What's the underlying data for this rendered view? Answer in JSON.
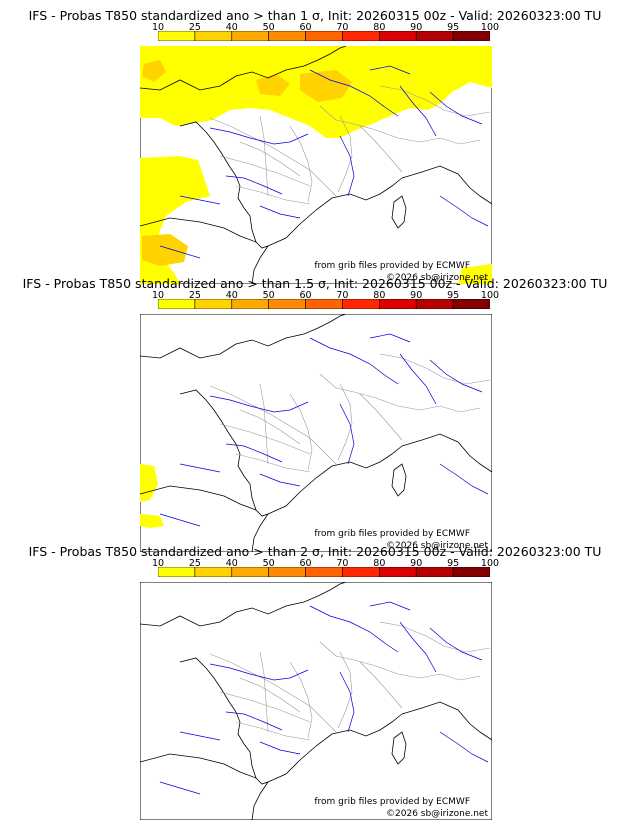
{
  "panels": [
    {
      "title": "IFS - Probas T850  standardized ano > than 1 σ, Init: 20260315 00z - Valid: 20260323:00 TU",
      "threshold": "1 σ",
      "credit_source": "from grib files provided by ECMWF",
      "credit_copyright": "©2026 sb@irizone.net"
    },
    {
      "title": "IFS - Probas T850  standardized ano > than 1.5 σ, Init: 20260315 00z - Valid: 20260323:00 TU",
      "threshold": "1.5 σ",
      "credit_source": "from grib files provided by ECMWF",
      "credit_copyright": "©2026 sb@irizone.net"
    },
    {
      "title": "IFS - Probas T850  standardized ano > than 2 σ, Init: 20260315 00z - Valid: 20260323:00 TU",
      "threshold": "2 σ",
      "credit_source": "from grib files provided by ECMWF",
      "credit_copyright": "©2026 sb@irizone.net"
    }
  ],
  "colorbar": {
    "ticks": [
      "10",
      "25",
      "40",
      "50",
      "60",
      "70",
      "80",
      "90",
      "95",
      "100"
    ],
    "colors": [
      "#ffff00",
      "#ffd200",
      "#ffaa00",
      "#ff8c00",
      "#ff6400",
      "#ff2800",
      "#dc0000",
      "#b40000",
      "#820000"
    ]
  },
  "map_colors": {
    "land": "#ffffff",
    "coast": "#000000",
    "rivers": "#0000dd",
    "borders": "#9a9a9a",
    "prob_low": "#ffff00",
    "prob_mid": "#ffd200"
  }
}
